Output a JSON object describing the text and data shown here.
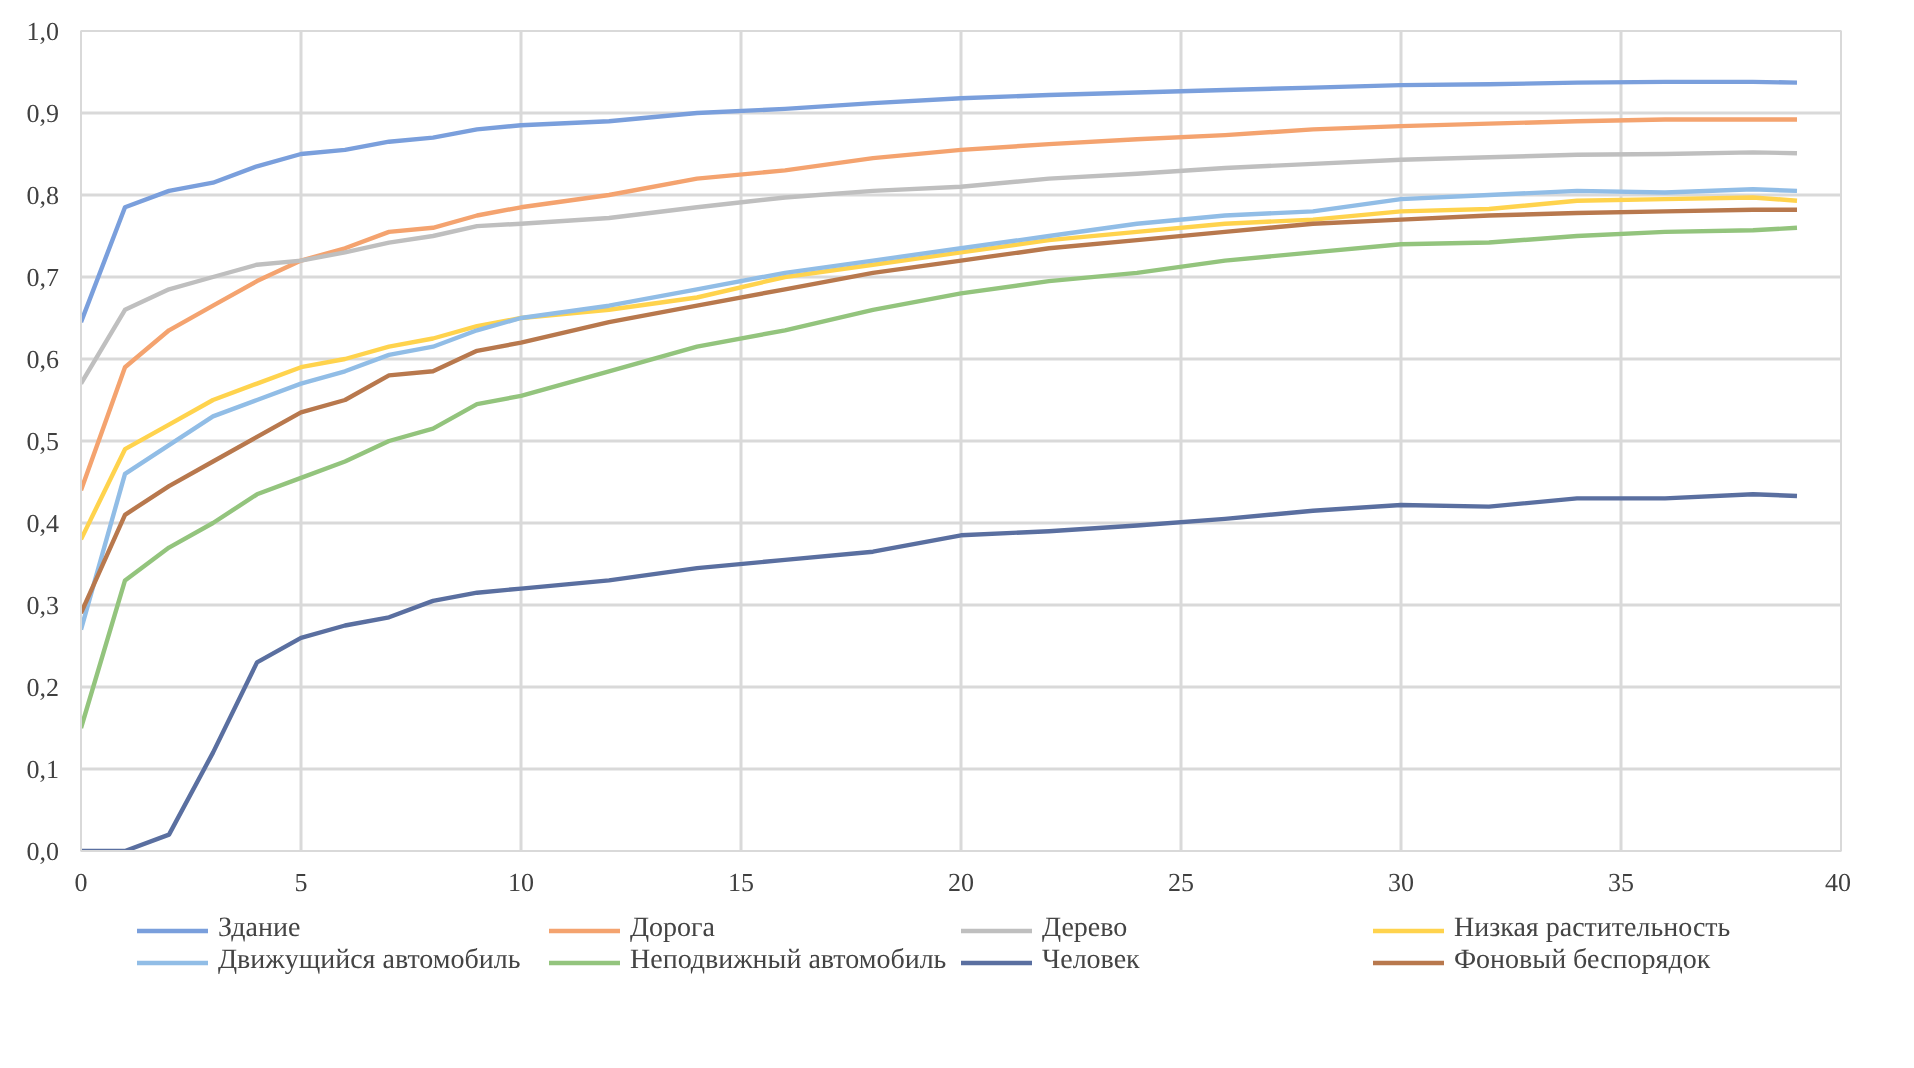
{
  "chart_data": {
    "type": "line",
    "x": [
      0,
      1,
      2,
      3,
      4,
      5,
      6,
      7,
      8,
      9,
      10,
      12,
      14,
      16,
      18,
      20,
      22,
      24,
      26,
      28,
      30,
      32,
      34,
      36,
      38,
      39
    ],
    "series": [
      {
        "name": "Здание",
        "color": "#7a9fdc",
        "values": [
          0.645,
          0.785,
          0.805,
          0.815,
          0.835,
          0.85,
          0.855,
          0.865,
          0.87,
          0.88,
          0.885,
          0.89,
          0.9,
          0.905,
          0.912,
          0.918,
          0.922,
          0.925,
          0.928,
          0.931,
          0.934,
          0.935,
          0.937,
          0.938,
          0.938,
          0.937
        ]
      },
      {
        "name": "Дорога",
        "color": "#f4a36f",
        "values": [
          0.44,
          0.59,
          0.635,
          0.665,
          0.695,
          0.72,
          0.735,
          0.755,
          0.76,
          0.775,
          0.785,
          0.8,
          0.82,
          0.83,
          0.845,
          0.855,
          0.862,
          0.868,
          0.873,
          0.88,
          0.884,
          0.887,
          0.89,
          0.892,
          0.892,
          0.892
        ]
      },
      {
        "name": "Дерево",
        "color": "#bfbfbf",
        "values": [
          0.57,
          0.66,
          0.685,
          0.7,
          0.715,
          0.72,
          0.73,
          0.742,
          0.75,
          0.762,
          0.765,
          0.772,
          0.785,
          0.797,
          0.805,
          0.81,
          0.82,
          0.826,
          0.833,
          0.838,
          0.843,
          0.846,
          0.849,
          0.85,
          0.852,
          0.851
        ]
      },
      {
        "name": "Низкая растительность",
        "color": "#ffd34d",
        "values": [
          0.38,
          0.49,
          0.52,
          0.55,
          0.57,
          0.59,
          0.6,
          0.615,
          0.625,
          0.64,
          0.65,
          0.66,
          0.675,
          0.7,
          0.715,
          0.73,
          0.745,
          0.755,
          0.765,
          0.77,
          0.78,
          0.783,
          0.793,
          0.795,
          0.797,
          0.793
        ]
      },
      {
        "name": "Движущийся автомобиль",
        "color": "#91bde6",
        "values": [
          0.27,
          0.46,
          0.495,
          0.53,
          0.55,
          0.57,
          0.585,
          0.605,
          0.615,
          0.635,
          0.65,
          0.665,
          0.685,
          0.705,
          0.72,
          0.735,
          0.75,
          0.765,
          0.775,
          0.78,
          0.795,
          0.8,
          0.805,
          0.803,
          0.807,
          0.805
        ]
      },
      {
        "name": "Неподвижный автомобиль",
        "color": "#93c47d",
        "values": [
          0.15,
          0.33,
          0.37,
          0.4,
          0.435,
          0.455,
          0.475,
          0.5,
          0.515,
          0.545,
          0.555,
          0.585,
          0.615,
          0.635,
          0.66,
          0.68,
          0.695,
          0.705,
          0.72,
          0.73,
          0.74,
          0.742,
          0.75,
          0.755,
          0.757,
          0.76
        ]
      },
      {
        "name": "Человек",
        "color": "#5a6fa0",
        "values": [
          0.0,
          0.0,
          0.02,
          0.12,
          0.23,
          0.26,
          0.275,
          0.285,
          0.305,
          0.315,
          0.32,
          0.33,
          0.345,
          0.355,
          0.365,
          0.385,
          0.39,
          0.397,
          0.405,
          0.415,
          0.422,
          0.42,
          0.43,
          0.43,
          0.435,
          0.433
        ]
      },
      {
        "name": "Фоновый беспорядок",
        "color": "#b8784d",
        "values": [
          0.29,
          0.41,
          0.445,
          0.475,
          0.505,
          0.535,
          0.55,
          0.58,
          0.585,
          0.61,
          0.62,
          0.645,
          0.665,
          0.685,
          0.705,
          0.72,
          0.735,
          0.745,
          0.755,
          0.765,
          0.77,
          0.775,
          0.778,
          0.78,
          0.782,
          0.782
        ]
      }
    ],
    "xlim": [
      0,
      40
    ],
    "xticks": [
      0,
      5,
      10,
      15,
      20,
      25,
      30,
      35,
      40
    ],
    "ylim": [
      0,
      1
    ],
    "yticks": [
      {
        "value": 0,
        "label": "0,0"
      },
      {
        "value": 0.1,
        "label": "0,1"
      },
      {
        "value": 0.2,
        "label": "0,2"
      },
      {
        "value": 0.3,
        "label": "0,3"
      },
      {
        "value": 0.4,
        "label": "0,4"
      },
      {
        "value": 0.5,
        "label": "0,5"
      },
      {
        "value": 0.6,
        "label": "0,6"
      },
      {
        "value": 0.7,
        "label": "0,7"
      },
      {
        "value": 0.8,
        "label": "0,8"
      },
      {
        "value": 0.9,
        "label": "0,9"
      },
      {
        "value": 1,
        "label": "1,0"
      }
    ],
    "grid": true,
    "legend": "bottom",
    "marker": "none",
    "line_style": "solid"
  }
}
